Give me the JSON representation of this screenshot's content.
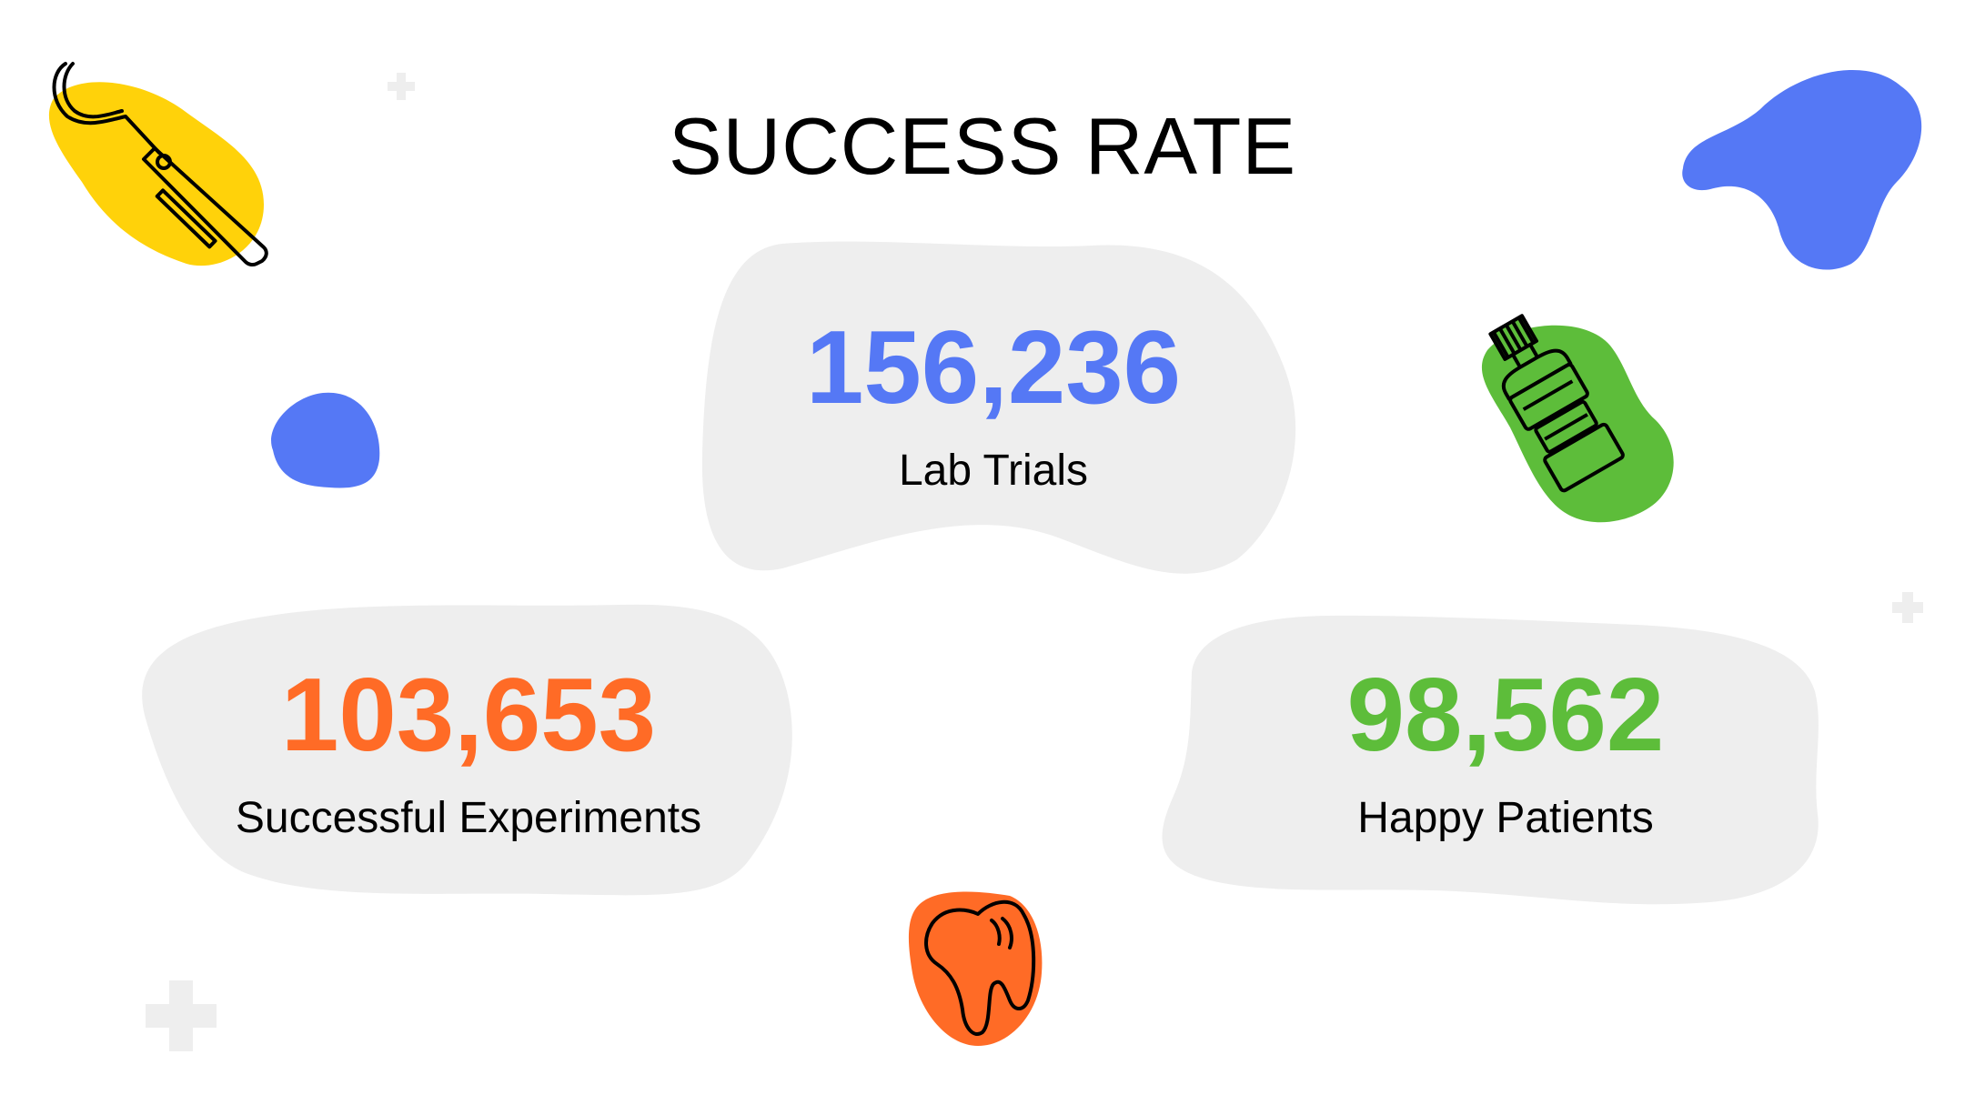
{
  "slide": {
    "title": "SUCCESS RATE",
    "stats": [
      {
        "value": "156,236",
        "label": "Lab Trials",
        "color": "#5578F5"
      },
      {
        "value": "103,653",
        "label": "Successful Experiments",
        "color": "#FF6B26"
      },
      {
        "value": "98,562",
        "label": "Happy Patients",
        "color": "#5DBD3A"
      }
    ]
  },
  "colors": {
    "blob_gray": "#EEEEEE",
    "blue": "#5578F5",
    "yellow": "#FFD20A",
    "green": "#5DBD3A",
    "orange": "#FF6B26",
    "plus": "#EEEEEE"
  },
  "icons": [
    "dental-explorer-icon",
    "mouthwash-bottle-icon",
    "tooth-icon"
  ]
}
